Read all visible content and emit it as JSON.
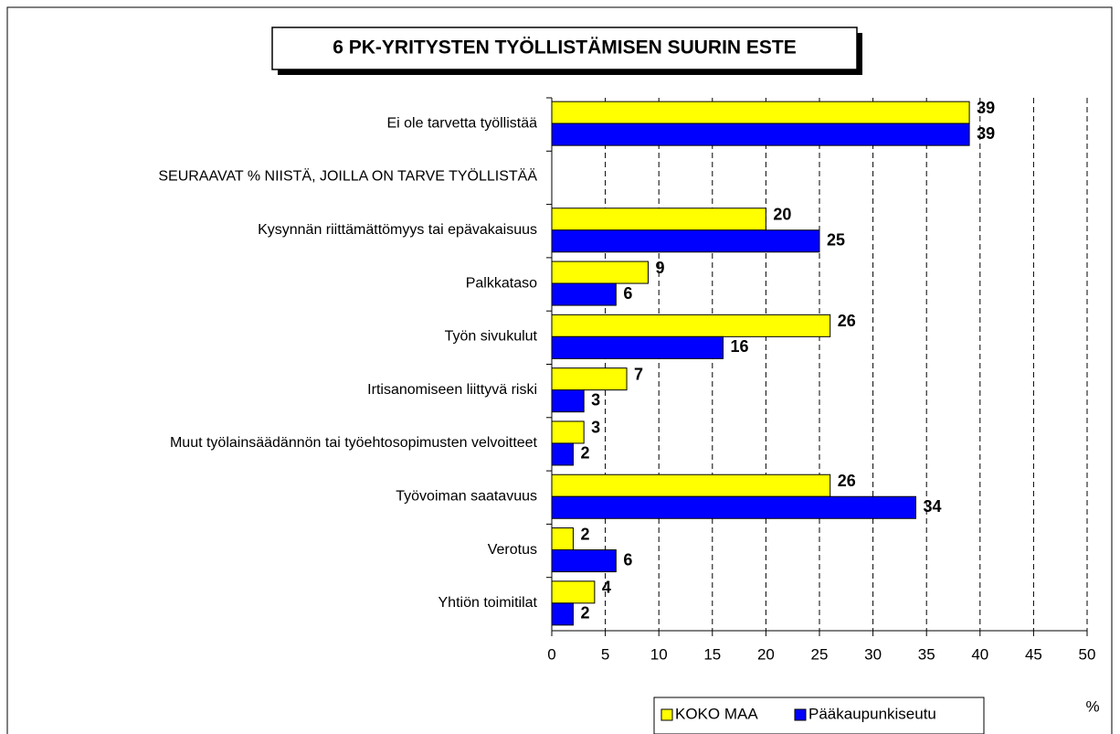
{
  "chart_data": {
    "type": "hbar",
    "title": "6 PK-YRITYSTEN TYÖLLISTÄMISEN SUURIN ESTE",
    "categories": [
      "Ei ole tarvetta työllistää",
      "SEURAAVAT % NIISTÄ, JOILLA ON TARVE TYÖLLISTÄÄ",
      "Kysynnän riittämättömyys tai epävakaisuus",
      "Palkkataso",
      "Työn sivukulut",
      "Irtisanomiseen liittyvä riski",
      "Muut työlainsäädännön tai työehtosopimusten velvoitteet",
      "Työvoiman saatavuus",
      "Verotus",
      "Yhtiön toimitilat"
    ],
    "series": [
      {
        "name": "KOKO MAA",
        "color": "#ffff00",
        "values": [
          39,
          null,
          20,
          9,
          26,
          7,
          3,
          26,
          2,
          4
        ]
      },
      {
        "name": "Pääkaupunkiseutu",
        "color": "#0000ff",
        "values": [
          39,
          null,
          25,
          6,
          16,
          3,
          2,
          34,
          6,
          2
        ]
      }
    ],
    "xlim": [
      0,
      50
    ],
    "xticks": [
      0,
      5,
      10,
      15,
      20,
      25,
      30,
      35,
      40,
      45,
      50
    ],
    "x_label": "%",
    "grid": true,
    "legend": "bottom"
  }
}
